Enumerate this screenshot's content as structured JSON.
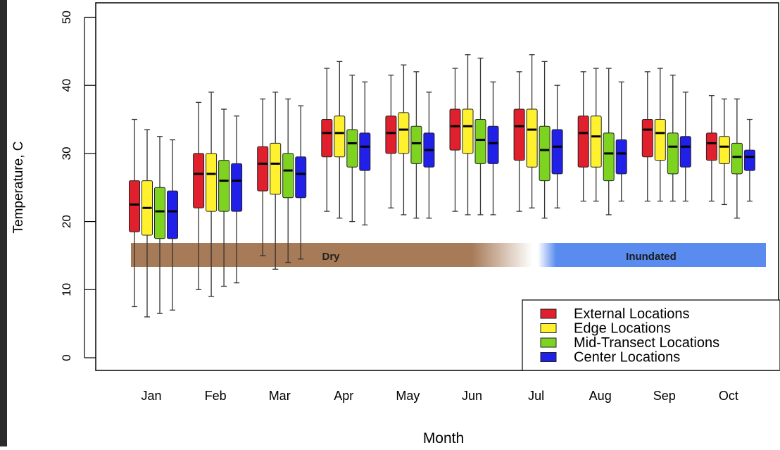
{
  "chart_data": {
    "type": "box",
    "title": "",
    "xlabel": "Month",
    "ylabel": "Temperature, C",
    "ylim": [
      0,
      50
    ],
    "yticks": [
      "0",
      "10",
      "20",
      "30",
      "40",
      "50"
    ],
    "categories": [
      "Jan",
      "Feb",
      "Mar",
      "Apr",
      "May",
      "Jun",
      "Jul",
      "Aug",
      "Sep",
      "Oct"
    ],
    "legend": {
      "placement": "bottom-right",
      "entries": [
        "External Locations",
        "Edge Locations",
        "Mid-Transect Locations",
        "Center Locations"
      ]
    },
    "bands": [
      {
        "label": "Dry",
        "color": "#a77b58"
      },
      {
        "label": "Inundated",
        "color": "#5a8cf0"
      }
    ],
    "series": [
      {
        "name": "External Locations",
        "color": "#e0202c",
        "boxes": [
          {
            "min": 7.5,
            "q1": 18.5,
            "median": 22.5,
            "q3": 26,
            "max": 35
          },
          {
            "min": 10,
            "q1": 22,
            "median": 27,
            "q3": 30,
            "max": 37.5
          },
          {
            "min": 15,
            "q1": 24.5,
            "median": 28.5,
            "q3": 31,
            "max": 38
          },
          {
            "min": 21.5,
            "q1": 29.5,
            "median": 33,
            "q3": 35,
            "max": 42.5
          },
          {
            "min": 22,
            "q1": 30,
            "median": 33,
            "q3": 35.5,
            "max": 41.5
          },
          {
            "min": 21.5,
            "q1": 30.5,
            "median": 34,
            "q3": 36.5,
            "max": 42.5
          },
          {
            "min": 21.5,
            "q1": 29,
            "median": 34,
            "q3": 36.5,
            "max": 42
          },
          {
            "min": 23,
            "q1": 28,
            "median": 33,
            "q3": 35.5,
            "max": 42
          },
          {
            "min": 23,
            "q1": 29.5,
            "median": 33.5,
            "q3": 35,
            "max": 42
          },
          {
            "min": 23,
            "q1": 29,
            "median": 31.5,
            "q3": 33,
            "max": 38.5
          }
        ]
      },
      {
        "name": "Edge Locations",
        "color": "#fff12e",
        "boxes": [
          {
            "min": 6,
            "q1": 18,
            "median": 22,
            "q3": 26,
            "max": 33.5
          },
          {
            "min": 9,
            "q1": 21.5,
            "median": 27,
            "q3": 30,
            "max": 39
          },
          {
            "min": 13,
            "q1": 24,
            "median": 28.5,
            "q3": 31.5,
            "max": 39
          },
          {
            "min": 20.5,
            "q1": 29.5,
            "median": 33,
            "q3": 35.5,
            "max": 43.5
          },
          {
            "min": 21,
            "q1": 30,
            "median": 33.5,
            "q3": 36,
            "max": 43
          },
          {
            "min": 21,
            "q1": 30,
            "median": 34,
            "q3": 36.5,
            "max": 44.5
          },
          {
            "min": 22,
            "q1": 28,
            "median": 33.5,
            "q3": 36.5,
            "max": 44.5
          },
          {
            "min": 23,
            "q1": 28,
            "median": 32.5,
            "q3": 35.5,
            "max": 42.5
          },
          {
            "min": 23,
            "q1": 29,
            "median": 33,
            "q3": 35,
            "max": 42.5
          },
          {
            "min": 22.5,
            "q1": 28.5,
            "median": 31,
            "q3": 32.5,
            "max": 38
          }
        ]
      },
      {
        "name": "Mid-Transect Locations",
        "color": "#7ed321",
        "boxes": [
          {
            "min": 6.5,
            "q1": 17.5,
            "median": 21.5,
            "q3": 25,
            "max": 32.5
          },
          {
            "min": 10.5,
            "q1": 21.5,
            "median": 26,
            "q3": 29,
            "max": 36.5
          },
          {
            "min": 14,
            "q1": 23.5,
            "median": 27.5,
            "q3": 30,
            "max": 38
          },
          {
            "min": 20,
            "q1": 28,
            "median": 31.5,
            "q3": 33.5,
            "max": 41.5
          },
          {
            "min": 20.5,
            "q1": 28.5,
            "median": 31.5,
            "q3": 34,
            "max": 42
          },
          {
            "min": 21,
            "q1": 28.5,
            "median": 32,
            "q3": 35,
            "max": 44
          },
          {
            "min": 20.5,
            "q1": 26,
            "median": 30.5,
            "q3": 34,
            "max": 43.5
          },
          {
            "min": 21,
            "q1": 26,
            "median": 30,
            "q3": 33,
            "max": 42.5
          },
          {
            "min": 23,
            "q1": 27,
            "median": 31,
            "q3": 33,
            "max": 41.5
          },
          {
            "min": 20.5,
            "q1": 27,
            "median": 29.5,
            "q3": 31.5,
            "max": 38
          }
        ]
      },
      {
        "name": "Center Locations",
        "color": "#2020e8",
        "boxes": [
          {
            "min": 7,
            "q1": 17.5,
            "median": 21.5,
            "q3": 24.5,
            "max": 32
          },
          {
            "min": 11,
            "q1": 21.5,
            "median": 26,
            "q3": 28.5,
            "max": 35.5
          },
          {
            "min": 14.5,
            "q1": 23.5,
            "median": 27,
            "q3": 29.5,
            "max": 37
          },
          {
            "min": 19.5,
            "q1": 27.5,
            "median": 31,
            "q3": 33,
            "max": 40.5
          },
          {
            "min": 20.5,
            "q1": 28,
            "median": 30.5,
            "q3": 33,
            "max": 39
          },
          {
            "min": 21,
            "q1": 28.5,
            "median": 31.5,
            "q3": 34,
            "max": 40.5
          },
          {
            "min": 22,
            "q1": 27,
            "median": 31,
            "q3": 33.5,
            "max": 40
          },
          {
            "min": 23,
            "q1": 27,
            "median": 30,
            "q3": 32,
            "max": 40.5
          },
          {
            "min": 23,
            "q1": 28,
            "median": 31,
            "q3": 32.5,
            "max": 39
          },
          {
            "min": 23,
            "q1": 27.5,
            "median": 29.5,
            "q3": 30.5,
            "max": 35
          }
        ]
      }
    ]
  }
}
